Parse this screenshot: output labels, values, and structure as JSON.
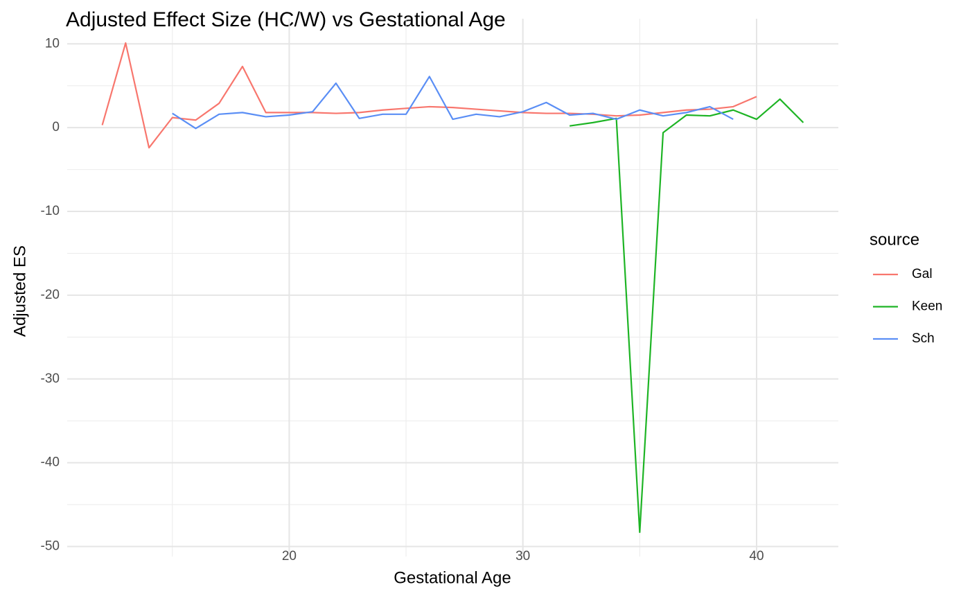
{
  "chart_data": {
    "type": "line",
    "title": "Adjusted Effect Size (HC/W) vs Gestational Age",
    "x_label": "Gestational Age",
    "y_label": "Adjusted ES",
    "legend_title": "source",
    "legend": "right",
    "grid": true,
    "x": [
      12,
      13,
      14,
      15,
      16,
      17,
      18,
      19,
      20,
      21,
      22,
      23,
      24,
      25,
      26,
      27,
      28,
      29,
      30,
      31,
      32,
      33,
      34,
      35,
      36,
      37,
      38,
      39,
      40,
      41,
      42
    ],
    "series": [
      {
        "name": "Gal",
        "color": "#f8766d",
        "values": [
          0.3,
          10.1,
          -2.4,
          1.2,
          0.9,
          2.9,
          7.3,
          1.8,
          1.8,
          1.8,
          1.7,
          1.8,
          2.1,
          2.3,
          2.5,
          2.4,
          2.2,
          2.0,
          1.8,
          1.7,
          1.7,
          1.6,
          1.4,
          1.5,
          1.8,
          2.1,
          2.2,
          2.5,
          3.7,
          null,
          null
        ]
      },
      {
        "name": "Keen",
        "color": "#1db424",
        "values": [
          null,
          null,
          null,
          null,
          null,
          null,
          null,
          null,
          null,
          null,
          null,
          null,
          null,
          null,
          null,
          null,
          null,
          null,
          null,
          null,
          0.2,
          0.6,
          1.1,
          -48.3,
          -0.6,
          1.5,
          1.4,
          2.1,
          1.0,
          3.4,
          0.6
        ]
      },
      {
        "name": "Sch",
        "color": "#5a8ef5",
        "values": [
          null,
          null,
          null,
          1.7,
          -0.1,
          1.6,
          1.8,
          1.3,
          1.5,
          1.9,
          5.3,
          1.1,
          1.6,
          1.6,
          6.1,
          1.0,
          1.6,
          1.3,
          1.9,
          3.0,
          1.5,
          1.7,
          1.0,
          2.1,
          1.4,
          1.8,
          2.5,
          1.0,
          null,
          null,
          null
        ]
      }
    ],
    "xlim": [
      10.5,
      43.5
    ],
    "xticks": [
      20,
      30,
      40
    ],
    "ylim": [
      -51.2,
      13.0
    ],
    "yticks": [
      -50,
      -40,
      -30,
      -20,
      -10,
      0,
      10
    ]
  }
}
